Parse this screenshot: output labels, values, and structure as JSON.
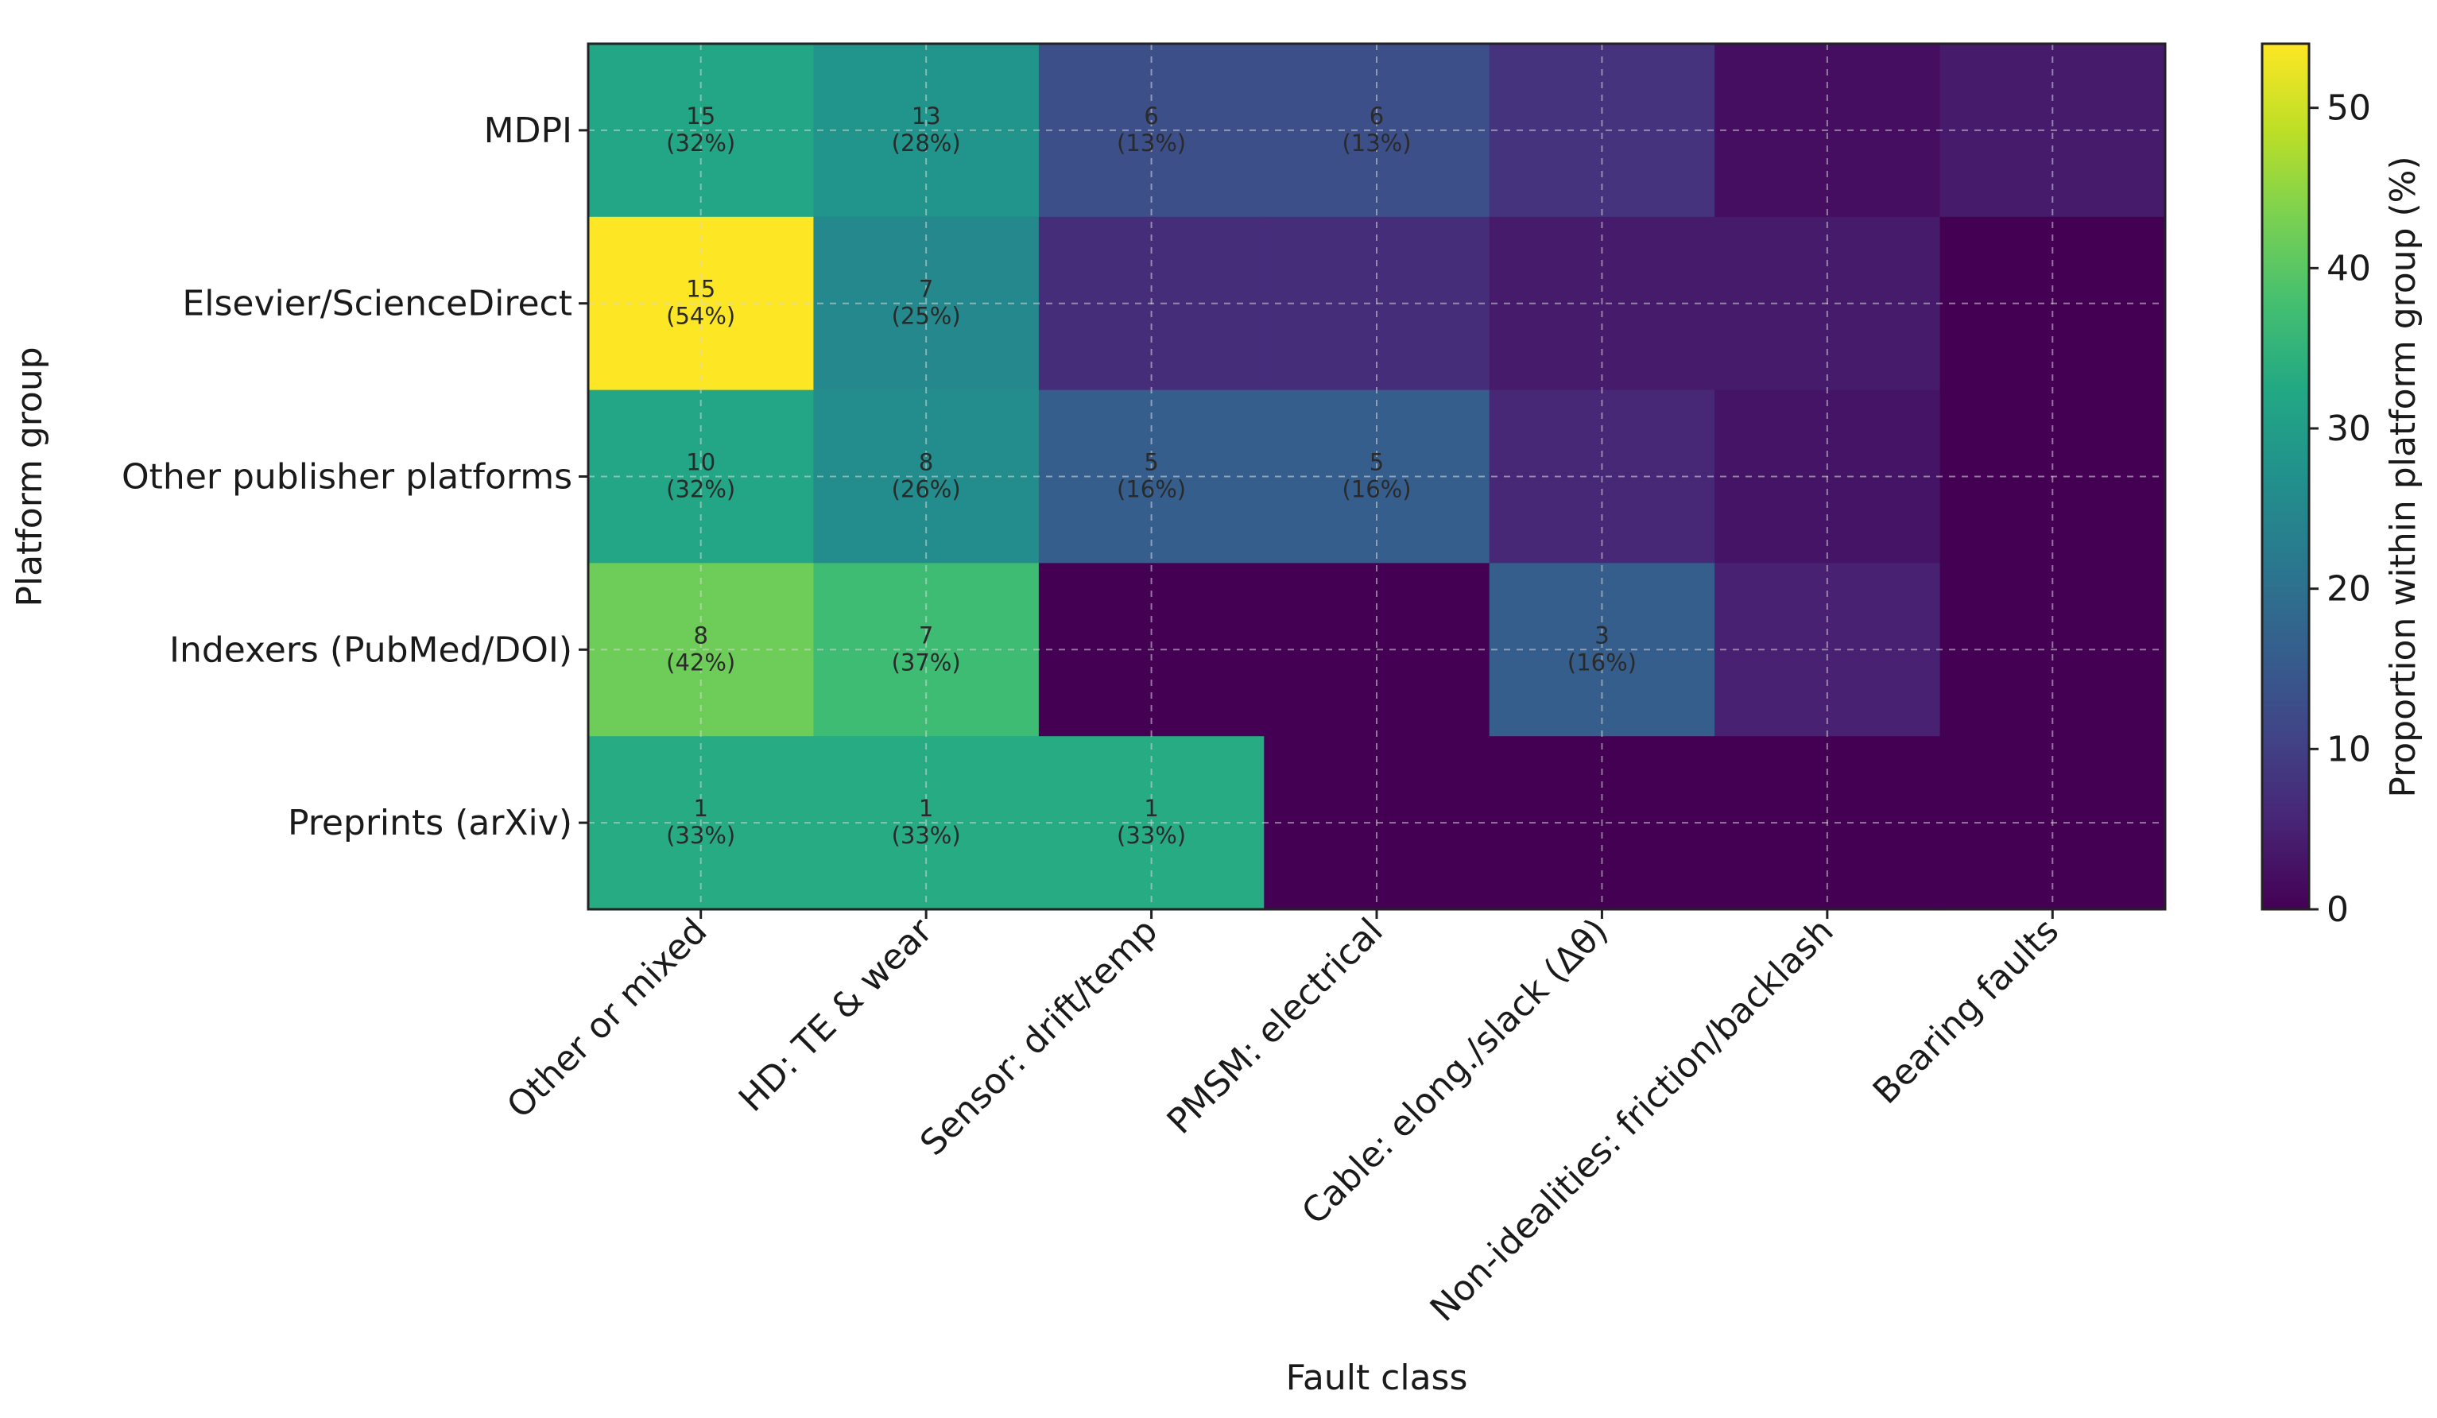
{
  "chart_data": {
    "type": "heatmap",
    "title": "",
    "xlabel": "Fault class",
    "ylabel": "Platform group",
    "colorbar_label": "Proportion within platform group (%)",
    "colorbar_range": [
      0,
      54
    ],
    "colorbar_ticks": [
      "0",
      "10",
      "20",
      "30",
      "40",
      "50"
    ],
    "colormap": "viridis",
    "x_categories": [
      "Other or mixed",
      "HD: TE & wear",
      "Sensor: drift/temp",
      "PMSM: electrical",
      "Cable: elong./slack (Δθ)",
      "Non-idealities: friction/backlash",
      "Bearing faults"
    ],
    "y_categories": [
      "MDPI",
      "Elsevier/ScienceDirect",
      "Other publisher platforms",
      "Indexers (PubMed/DOI)",
      "Preprints (arXiv)"
    ],
    "percent_values": [
      [
        32,
        28,
        13,
        13,
        8,
        2,
        4
      ],
      [
        54,
        25,
        7,
        7,
        4,
        4,
        0
      ],
      [
        32,
        26,
        16,
        16,
        6,
        3,
        0
      ],
      [
        42,
        37,
        0,
        0,
        16,
        5,
        0
      ],
      [
        33,
        33,
        33,
        0,
        0,
        0,
        0
      ]
    ],
    "cell_labels": [
      [
        {
          "count": "15",
          "pct": "(32%)"
        },
        {
          "count": "13",
          "pct": "(28%)"
        },
        {
          "count": "6",
          "pct": "(13%)"
        },
        {
          "count": "6",
          "pct": "(13%)"
        },
        null,
        null,
        null
      ],
      [
        {
          "count": "15",
          "pct": "(54%)"
        },
        {
          "count": "7",
          "pct": "(25%)"
        },
        null,
        null,
        null,
        null,
        null
      ],
      [
        {
          "count": "10",
          "pct": "(32%)"
        },
        {
          "count": "8",
          "pct": "(26%)"
        },
        {
          "count": "5",
          "pct": "(16%)"
        },
        {
          "count": "5",
          "pct": "(16%)"
        },
        null,
        null,
        null
      ],
      [
        {
          "count": "8",
          "pct": "(42%)"
        },
        {
          "count": "7",
          "pct": "(37%)"
        },
        null,
        null,
        {
          "count": "3",
          "pct": "(16%)"
        },
        null,
        null
      ],
      [
        {
          "count": "1",
          "pct": "(33%)"
        },
        {
          "count": "1",
          "pct": "(33%)"
        },
        {
          "count": "1",
          "pct": "(33%)"
        },
        null,
        null,
        null,
        null
      ]
    ],
    "grid": true
  }
}
